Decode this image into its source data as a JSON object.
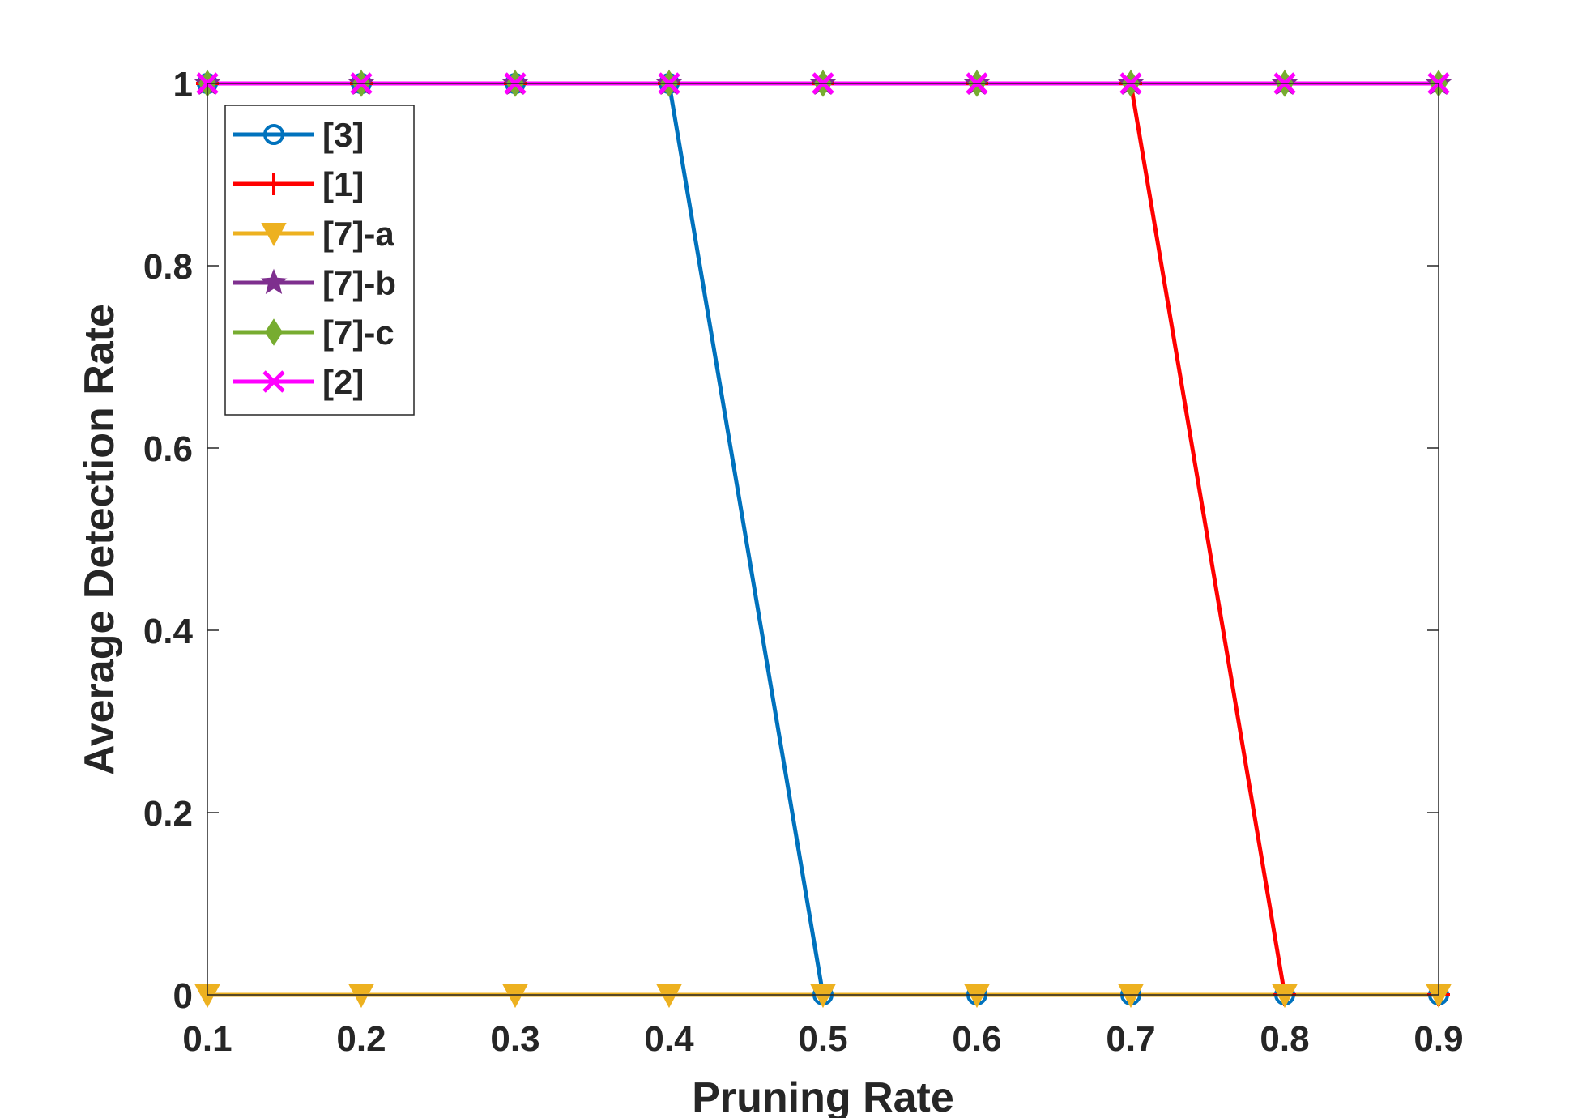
{
  "chart_data": {
    "type": "line",
    "title": "",
    "xlabel": "Pruning Rate",
    "ylabel": "Average Detection Rate",
    "xlim": [
      0.1,
      0.9
    ],
    "ylim": [
      0,
      1
    ],
    "xticks": [
      "0.1",
      "0.2",
      "0.3",
      "0.4",
      "0.5",
      "0.6",
      "0.7",
      "0.8",
      "0.9"
    ],
    "yticks": [
      "0",
      "0.2",
      "0.4",
      "0.6",
      "0.8",
      "1"
    ],
    "x": [
      0.1,
      0.2,
      0.3,
      0.4,
      0.5,
      0.6,
      0.7,
      0.8,
      0.9
    ],
    "grid": false,
    "legend_position": "top-left",
    "series": [
      {
        "name": "[3]",
        "color": "#0072BD",
        "marker": "circle",
        "values": [
          1,
          1,
          1,
          1,
          0,
          0,
          0,
          0,
          0
        ]
      },
      {
        "name": "[1]",
        "color": "#FF0000",
        "marker": "plus",
        "values": [
          1,
          1,
          1,
          1,
          1,
          1,
          1,
          0,
          0
        ]
      },
      {
        "name": "[7]-a",
        "color": "#EDB120",
        "marker": "triangle-down",
        "values": [
          0,
          0,
          0,
          0,
          0,
          0,
          0,
          0,
          0
        ]
      },
      {
        "name": "[7]-b",
        "color": "#7E2F8E",
        "marker": "star",
        "values": [
          1,
          1,
          1,
          1,
          1,
          1,
          1,
          1,
          1
        ]
      },
      {
        "name": "[7]-c",
        "color": "#77AC30",
        "marker": "diamond",
        "values": [
          1,
          1,
          1,
          1,
          1,
          1,
          1,
          1,
          1
        ]
      },
      {
        "name": "[2]",
        "color": "#FF00FF",
        "marker": "cross",
        "values": [
          1,
          1,
          1,
          1,
          1,
          1,
          1,
          1,
          1
        ]
      }
    ]
  }
}
